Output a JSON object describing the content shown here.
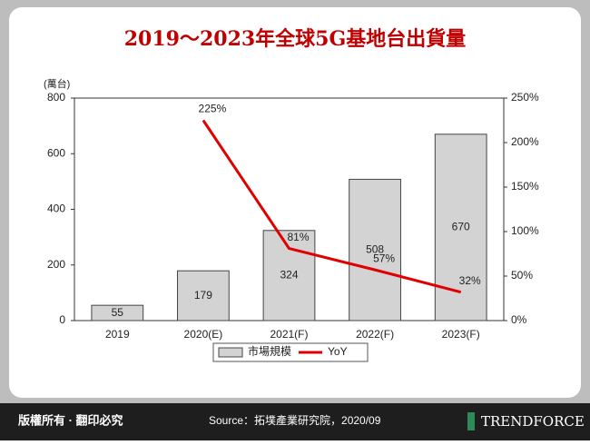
{
  "chart_data": {
    "type": "bar-line",
    "title": "2019～2023年全球5G基地台出貨量",
    "y_label": "(萬台)",
    "categories": [
      "2019",
      "2020(E)",
      "2021(F)",
      "2022(F)",
      "2023(F)"
    ],
    "series": [
      {
        "name": "市場規模",
        "type": "bar",
        "color": "#d3d3d3",
        "values": [
          55,
          179,
          324,
          508,
          670
        ]
      },
      {
        "name": "YoY",
        "type": "line",
        "axis": "y2",
        "color": "#e00000",
        "values": [
          null,
          225,
          81,
          57,
          32
        ],
        "value_labels": [
          null,
          "225%",
          "81%",
          "57%",
          "32%"
        ]
      }
    ],
    "ylim": [
      0,
      800
    ],
    "yticks": [
      0,
      200,
      400,
      600,
      800
    ],
    "y2lim": [
      0,
      250
    ],
    "y2ticks": [
      {
        "value": 0,
        "label": "0%"
      },
      {
        "value": 50,
        "label": "50%"
      },
      {
        "value": 100,
        "label": "100%"
      },
      {
        "value": 150,
        "label": "150%"
      },
      {
        "value": 200,
        "label": "200%"
      },
      {
        "value": 250,
        "label": "250%"
      }
    ],
    "legend": "bottom"
  },
  "footer": {
    "copyright": "版權所有 · 翻印必究",
    "source": "Source：拓墣產業研究院，2020/09",
    "brand": "TRENDFORCE"
  }
}
